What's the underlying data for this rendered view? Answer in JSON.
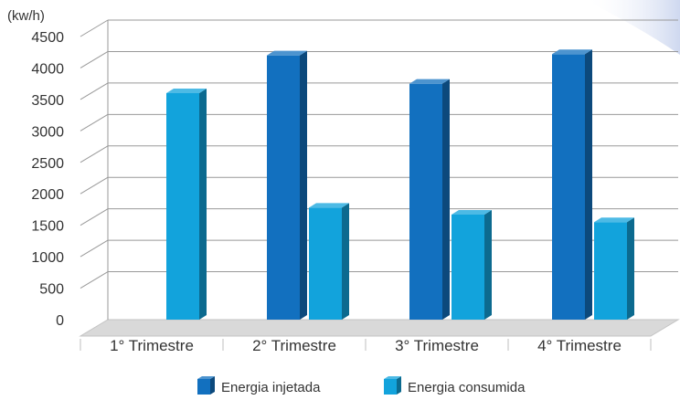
{
  "chart_data": {
    "type": "bar",
    "unit_label": "(kw/h)",
    "categories": [
      "1° Trimestre",
      "2° Trimestre",
      "3° Trimestre",
      "4° Trimestre"
    ],
    "series": [
      {
        "name": "Energia injetada",
        "values": [
          0,
          4200,
          3750,
          4220
        ],
        "color": "#1270bf"
      },
      {
        "name": "Energia consumida",
        "values": [
          3600,
          1780,
          1670,
          1550
        ],
        "color": "#12a3dc"
      }
    ],
    "yticks": [
      "0",
      "500",
      "1000",
      "1500",
      "2000",
      "2500",
      "3000",
      "3500",
      "4000",
      "4500"
    ],
    "ylim": [
      0,
      4500
    ],
    "grid": true,
    "legend_position": "bottom-center"
  }
}
